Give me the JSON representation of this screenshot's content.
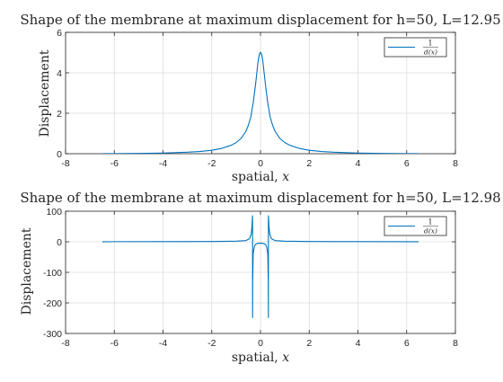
{
  "chart_data": [
    {
      "type": "line",
      "title": "Shape of the membrane at maximum displacement for h=50, L=12.95",
      "xlabel": "spatial, x",
      "ylabel": "Displacement",
      "xlim": [
        -8,
        8
      ],
      "ylim": [
        0,
        6
      ],
      "xticks": [
        -8,
        -6,
        -4,
        -2,
        0,
        2,
        4,
        6,
        8
      ],
      "yticks": [
        0,
        2,
        4,
        6
      ],
      "xtick_labels": [
        "-8",
        "-6",
        "-4",
        "-2",
        "0",
        "2",
        "4",
        "6",
        "8"
      ],
      "ytick_labels": [
        "0",
        "2",
        "4",
        "6"
      ],
      "grid": true,
      "legend_position": "top-right",
      "series": [
        {
          "name": "1/d(x)",
          "color": "#0072bd",
          "x": [
            -6.475,
            -6,
            -5,
            -4,
            -3,
            -2.5,
            -2,
            -1.6,
            -1.2,
            -1,
            -0.8,
            -0.6,
            -0.5,
            -0.4,
            -0.3,
            -0.2,
            -0.15,
            -0.1,
            -0.05,
            0,
            0.05,
            0.1,
            0.15,
            0.2,
            0.3,
            0.4,
            0.5,
            0.6,
            0.8,
            1,
            1.2,
            1.6,
            2,
            2.5,
            3,
            4,
            5,
            6,
            6.475
          ],
          "y": [
            0.002,
            0.005,
            0.014,
            0.033,
            0.075,
            0.11,
            0.17,
            0.26,
            0.42,
            0.55,
            0.75,
            1.1,
            1.4,
            1.8,
            2.5,
            3.45,
            4.0,
            4.55,
            4.9,
            5.02,
            4.9,
            4.55,
            4.0,
            3.45,
            2.5,
            1.8,
            1.4,
            1.1,
            0.75,
            0.55,
            0.42,
            0.26,
            0.17,
            0.11,
            0.075,
            0.033,
            0.014,
            0.005,
            0.002
          ]
        }
      ]
    },
    {
      "type": "line",
      "title": "Shape of the membrane at maximum displacement for h=50, L=12.98",
      "xlabel": "spatial, x",
      "ylabel": "Displacement",
      "xlim": [
        -8,
        8
      ],
      "ylim": [
        -300,
        100
      ],
      "xticks": [
        -8,
        -6,
        -4,
        -2,
        0,
        2,
        4,
        6,
        8
      ],
      "yticks": [
        -300,
        -200,
        -100,
        0,
        100
      ],
      "xtick_labels": [
        "-8",
        "-6",
        "-4",
        "-2",
        "0",
        "2",
        "4",
        "6",
        "8"
      ],
      "ytick_labels": [
        "-300",
        "-200",
        "-100",
        "0",
        "100"
      ],
      "grid": true,
      "legend_position": "top-right",
      "series": [
        {
          "name": "1/d(x)",
          "color": "#0072bd",
          "x": [
            -6.49,
            -4,
            -2,
            -1,
            -0.6,
            -0.45,
            -0.38,
            -0.35,
            -0.33,
            -0.325,
            -0.325,
            -0.32,
            -0.3,
            -0.25,
            -0.2,
            -0.1,
            0,
            0.1,
            0.2,
            0.25,
            0.3,
            0.32,
            0.325,
            0.325,
            0.33,
            0.35,
            0.38,
            0.45,
            0.6,
            1,
            2,
            4,
            6.49
          ],
          "y": [
            0.3,
            0.5,
            1,
            2,
            4,
            10,
            25,
            50,
            80,
            85,
            -248,
            -130,
            -40,
            -15,
            -8,
            -5,
            -4.5,
            -5,
            -8,
            -15,
            -40,
            -130,
            -248,
            85,
            80,
            50,
            25,
            10,
            4,
            2,
            1,
            0.5,
            0.3
          ]
        }
      ]
    }
  ],
  "legend_label": {
    "numerator": "1",
    "denominator": "d(x)"
  }
}
